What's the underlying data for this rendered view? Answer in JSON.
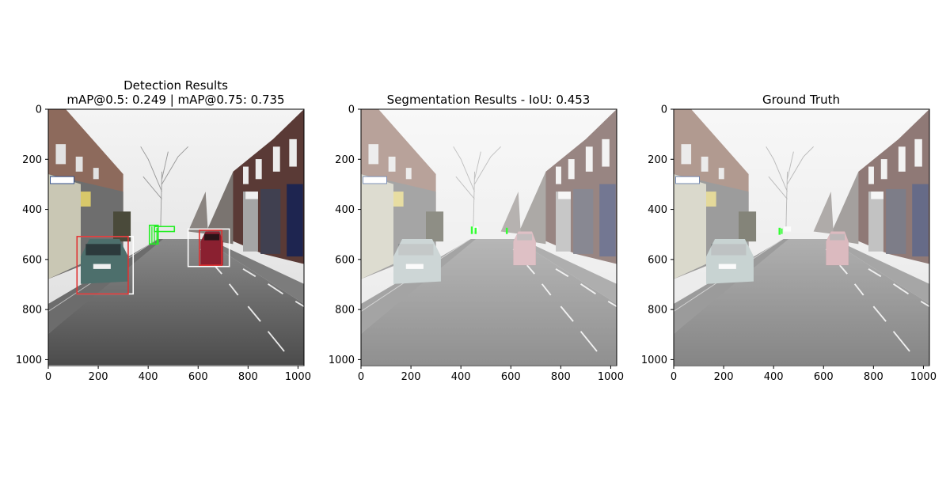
{
  "figure": {
    "panels": [
      {
        "id": "detection",
        "title_lines": [
          "Detection Results",
          "mAP@0.5: 0.249 | mAP@0.75: 0.735"
        ]
      },
      {
        "id": "segmentation",
        "title_lines": [
          "Segmentation Results - IoU: 0.453"
        ]
      },
      {
        "id": "ground-truth",
        "title_lines": [
          "Ground Truth"
        ]
      }
    ]
  },
  "chart_data": [
    {
      "type": "image",
      "title": "Detection Results\nmAP@0.5: 0.249 | mAP@0.75: 0.735",
      "xticks": [
        0,
        200,
        400,
        600,
        800,
        1000
      ],
      "yticks": [
        0,
        200,
        400,
        600,
        800,
        1000
      ],
      "xlim": [
        0,
        1024
      ],
      "ylim": [
        1024,
        0
      ],
      "overlay": "bounding boxes",
      "boxes": [
        {
          "x0": 115,
          "y0": 510,
          "x1": 340,
          "y1": 740,
          "color": "#ffffff"
        },
        {
          "x0": 115,
          "y0": 510,
          "x1": 320,
          "y1": 740,
          "color": "#e03030"
        },
        {
          "x0": 560,
          "y0": 480,
          "x1": 725,
          "y1": 630,
          "color": "#ffffff"
        },
        {
          "x0": 605,
          "y0": 485,
          "x1": 695,
          "y1": 625,
          "color": "#e03030"
        },
        {
          "x0": 405,
          "y0": 465,
          "x1": 440,
          "y1": 540,
          "color": "#22ee22"
        },
        {
          "x0": 425,
          "y0": 470,
          "x1": 505,
          "y1": 490,
          "color": "#22ee22"
        }
      ]
    },
    {
      "type": "image",
      "title": "Segmentation Results - IoU: 0.453",
      "xticks": [
        0,
        200,
        400,
        600,
        800,
        1000
      ],
      "yticks": [
        0,
        200,
        400,
        600,
        800,
        1000
      ],
      "xlim": [
        0,
        1024
      ],
      "ylim": [
        1024,
        0
      ],
      "overlay": "segmentation masks"
    },
    {
      "type": "image",
      "title": "Ground Truth",
      "xticks": [
        0,
        200,
        400,
        600,
        800,
        1000
      ],
      "yticks": [
        0,
        200,
        400,
        600,
        800,
        1000
      ],
      "xlim": [
        0,
        1024
      ],
      "ylim": [
        1024,
        0
      ],
      "overlay": "segmentation masks"
    }
  ]
}
